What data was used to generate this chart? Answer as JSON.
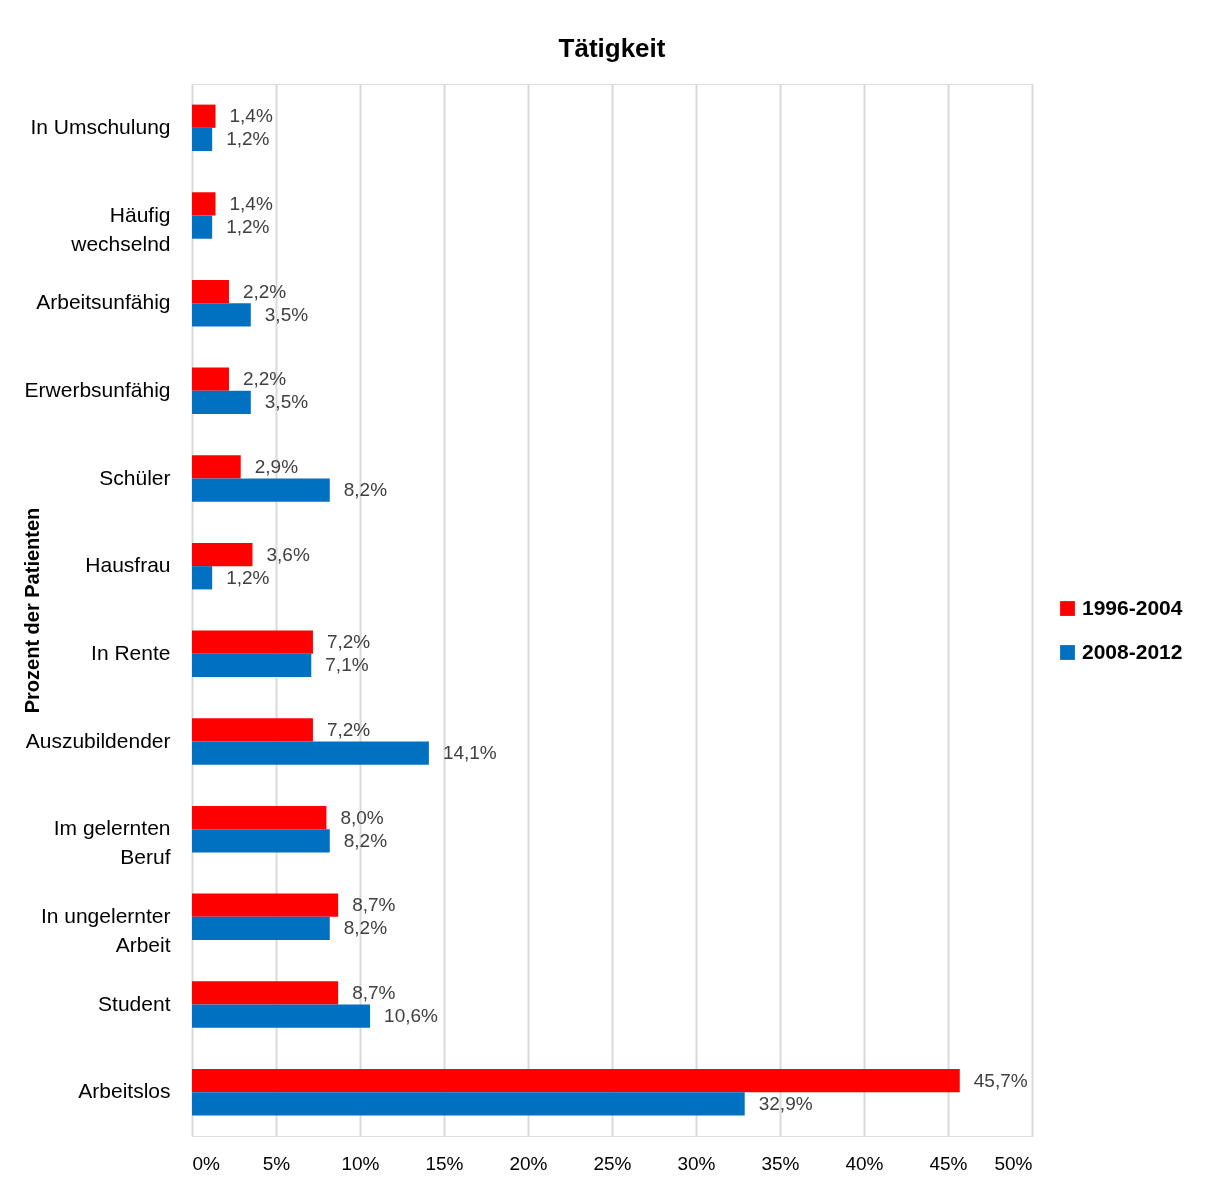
{
  "chart_data": {
    "type": "bar",
    "orientation": "horizontal",
    "title": "Tätigkeit",
    "ylabel": "Prozent der Patienten",
    "categories": [
      "In Umschulung",
      "Häufig\nwechselnd",
      "Arbeitsunfähig",
      "Erwerbsunfähig",
      "Schüler",
      "Hausfrau",
      "In Rente",
      "Auszubildender",
      "Im gelernten\nBeruf",
      "In ungelernter\nArbeit",
      "Student",
      "Arbeitslos"
    ],
    "series": [
      {
        "name": "1996-2004",
        "color": "#ff0000",
        "values": [
          1.4,
          1.4,
          2.2,
          2.2,
          2.9,
          3.6,
          7.2,
          7.2,
          8.0,
          8.7,
          8.7,
          45.7
        ],
        "value_labels": [
          "1,4%",
          "1,4%",
          "2,2%",
          "2,2%",
          "2,9%",
          "3,6%",
          "7,2%",
          "7,2%",
          "8,0%",
          "8,7%",
          "8,7%",
          "45,7%"
        ]
      },
      {
        "name": "2008-2012",
        "color": "#0070c0",
        "values": [
          1.2,
          1.2,
          3.5,
          3.5,
          8.2,
          1.2,
          7.1,
          14.1,
          8.2,
          8.2,
          10.6,
          32.9
        ],
        "value_labels": [
          "1,2%",
          "1,2%",
          "3,5%",
          "3,5%",
          "8,2%",
          "1,2%",
          "7,1%",
          "14,1%",
          "8,2%",
          "8,2%",
          "10,6%",
          "32,9%"
        ]
      }
    ],
    "xlim": [
      0,
      50
    ],
    "xticks": [
      {
        "value": 0,
        "label": "0%"
      },
      {
        "value": 5,
        "label": "5%"
      },
      {
        "value": 10,
        "label": "10%"
      },
      {
        "value": 15,
        "label": "15%"
      },
      {
        "value": 20,
        "label": "20%"
      },
      {
        "value": 25,
        "label": "25%"
      },
      {
        "value": 30,
        "label": "30%"
      },
      {
        "value": 35,
        "label": "35%"
      },
      {
        "value": 40,
        "label": "40%"
      },
      {
        "value": 45,
        "label": "45%"
      },
      {
        "value": 50,
        "label": "50%"
      }
    ],
    "grid": "x",
    "legend": "right"
  }
}
